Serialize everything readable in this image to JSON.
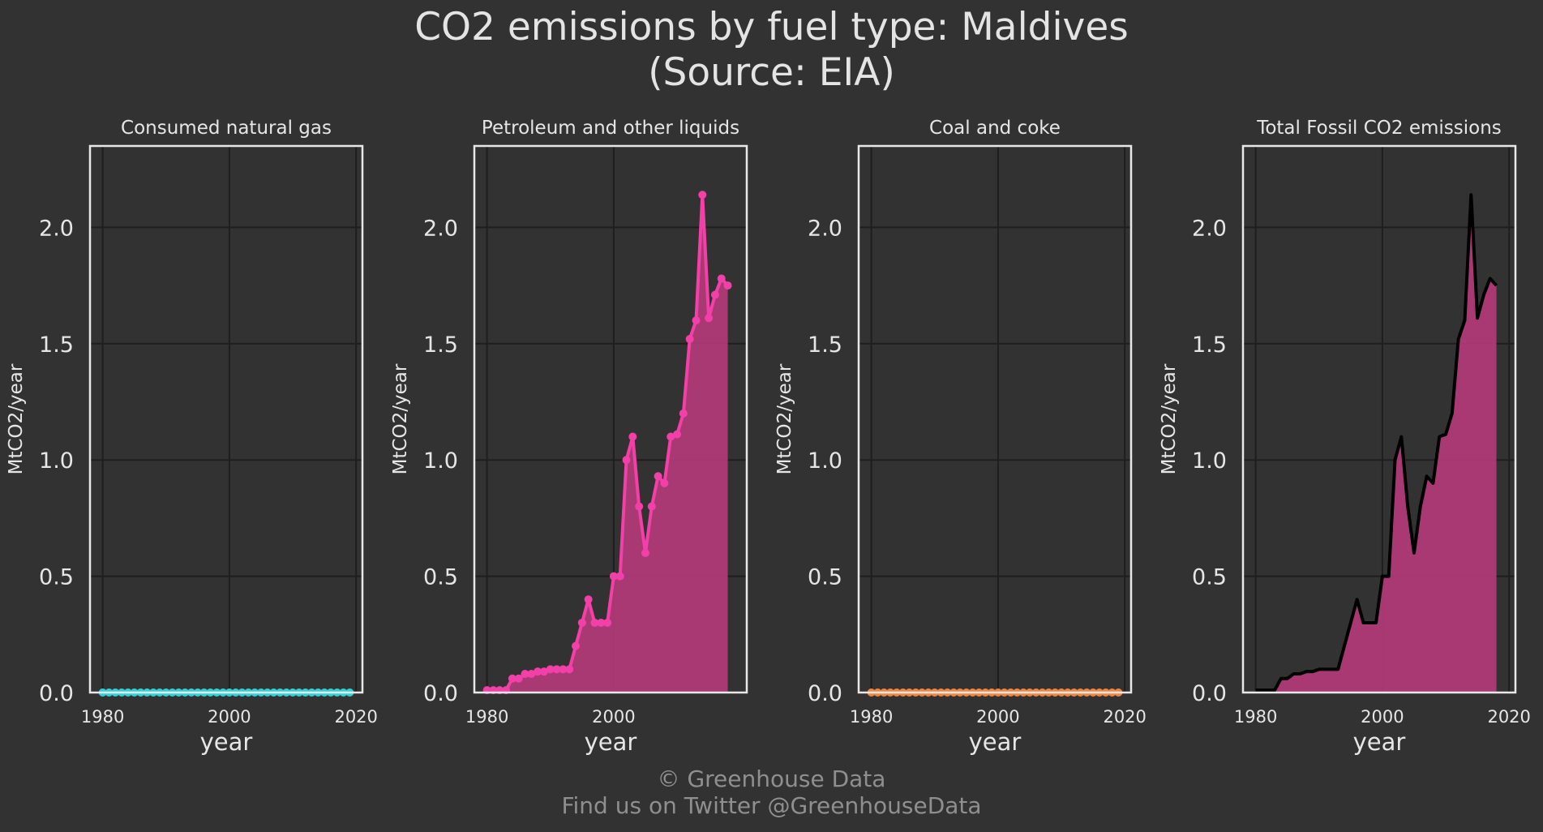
{
  "title_line1": "CO2 emissions by fuel type: Maldives",
  "title_line2": "(Source: EIA)",
  "credit_line1": "© Greenhouse Data",
  "credit_line2": "Find us on Twitter @GreenhouseData",
  "colors": {
    "background": "#323232",
    "grid": "#1e1e1e",
    "frame": "#e8e8e8",
    "text": "#e6e6e6",
    "natural_gas": "#2ed3d8",
    "petroleum": "#f240a8",
    "petroleum_fill": "#b23a78",
    "coal": "#f5853c",
    "total_line": "#000000",
    "total_fill": "#b23a78"
  },
  "chart_data": [
    {
      "type": "line",
      "title": "Consumed natural gas",
      "xlabel": "year",
      "ylabel": "MtCO2/year",
      "xlim": [
        1978,
        2021
      ],
      "ylim": [
        0,
        2.35
      ],
      "xticks": [
        1980,
        2000,
        2020
      ],
      "yticks": [
        0.0,
        0.5,
        1.0,
        1.5,
        2.0
      ],
      "ytick_labels": [
        "0.0",
        "0.5",
        "1.0",
        "1.5",
        "2.0"
      ],
      "grid": true,
      "series": [
        {
          "color": "#2ed3d8",
          "markers": true,
          "fill": false,
          "x": [
            1980,
            1981,
            1982,
            1983,
            1984,
            1985,
            1986,
            1987,
            1988,
            1989,
            1990,
            1991,
            1992,
            1993,
            1994,
            1995,
            1996,
            1997,
            1998,
            1999,
            2000,
            2001,
            2002,
            2003,
            2004,
            2005,
            2006,
            2007,
            2008,
            2009,
            2010,
            2011,
            2012,
            2013,
            2014,
            2015,
            2016,
            2017,
            2018,
            2019
          ],
          "y": [
            0,
            0,
            0,
            0,
            0,
            0,
            0,
            0,
            0,
            0,
            0,
            0,
            0,
            0,
            0,
            0,
            0,
            0,
            0,
            0,
            0,
            0,
            0,
            0,
            0,
            0,
            0,
            0,
            0,
            0,
            0,
            0,
            0,
            0,
            0,
            0,
            0,
            0,
            0,
            0
          ]
        }
      ]
    },
    {
      "type": "area",
      "title": "Petroleum and other liquids",
      "xlabel": "year",
      "ylabel": "MtCO2/year",
      "xlim": [
        1978,
        2021
      ],
      "ylim": [
        0,
        2.35
      ],
      "xticks": [
        1980,
        2000
      ],
      "yticks": [
        0.0,
        0.5,
        1.0,
        1.5,
        2.0
      ],
      "ytick_labels": [
        "0.0",
        "0.5",
        "1.0",
        "1.5",
        "2.0"
      ],
      "grid": true,
      "series": [
        {
          "color": "#f240a8",
          "fill_color": "#b23a78",
          "markers": true,
          "fill": true,
          "x": [
            1980,
            1981,
            1982,
            1983,
            1984,
            1985,
            1986,
            1987,
            1988,
            1989,
            1990,
            1991,
            1992,
            1993,
            1994,
            1995,
            1996,
            1997,
            1998,
            1999,
            2000,
            2001,
            2002,
            2003,
            2004,
            2005,
            2006,
            2007,
            2008,
            2009,
            2010,
            2011,
            2012,
            2013,
            2014,
            2015,
            2016,
            2017,
            2018
          ],
          "y": [
            0.01,
            0.01,
            0.01,
            0.01,
            0.06,
            0.06,
            0.08,
            0.08,
            0.09,
            0.09,
            0.1,
            0.1,
            0.1,
            0.1,
            0.2,
            0.3,
            0.4,
            0.3,
            0.3,
            0.3,
            0.5,
            0.5,
            1.0,
            1.1,
            0.8,
            0.6,
            0.8,
            0.93,
            0.9,
            1.1,
            1.11,
            1.2,
            1.52,
            1.6,
            2.14,
            1.61,
            1.71,
            1.78,
            1.75
          ]
        }
      ]
    },
    {
      "type": "line",
      "title": "Coal and coke",
      "xlabel": "year",
      "ylabel": "MtCO2/year",
      "xlim": [
        1978,
        2021
      ],
      "ylim": [
        0,
        2.35
      ],
      "xticks": [
        1980,
        2000,
        2020
      ],
      "yticks": [
        0.0,
        0.5,
        1.0,
        1.5,
        2.0
      ],
      "ytick_labels": [
        "0.0",
        "0.5",
        "1.0",
        "1.5",
        "2.0"
      ],
      "grid": true,
      "series": [
        {
          "color": "#f5853c",
          "markers": true,
          "fill": false,
          "x": [
            1980,
            1981,
            1982,
            1983,
            1984,
            1985,
            1986,
            1987,
            1988,
            1989,
            1990,
            1991,
            1992,
            1993,
            1994,
            1995,
            1996,
            1997,
            1998,
            1999,
            2000,
            2001,
            2002,
            2003,
            2004,
            2005,
            2006,
            2007,
            2008,
            2009,
            2010,
            2011,
            2012,
            2013,
            2014,
            2015,
            2016,
            2017,
            2018,
            2019
          ],
          "y": [
            0,
            0,
            0,
            0,
            0,
            0,
            0,
            0,
            0,
            0,
            0,
            0,
            0,
            0,
            0,
            0,
            0,
            0,
            0,
            0,
            0,
            0,
            0,
            0,
            0,
            0,
            0,
            0,
            0,
            0,
            0,
            0,
            0,
            0,
            0,
            0,
            0,
            0,
            0,
            0
          ]
        }
      ]
    },
    {
      "type": "area",
      "title": "Total Fossil CO2 emissions",
      "xlabel": "year",
      "ylabel": "MtCO2/year",
      "xlim": [
        1978,
        2021
      ],
      "ylim": [
        0,
        2.35
      ],
      "xticks": [
        1980,
        2000,
        2020
      ],
      "yticks": [
        0.0,
        0.5,
        1.0,
        1.5,
        2.0
      ],
      "ytick_labels": [
        "0.0",
        "0.5",
        "1.0",
        "1.5",
        "2.0"
      ],
      "grid": true,
      "series": [
        {
          "color": "#000000",
          "fill_color": "#b23a78",
          "markers": false,
          "fill": true,
          "x": [
            1980,
            1981,
            1982,
            1983,
            1984,
            1985,
            1986,
            1987,
            1988,
            1989,
            1990,
            1991,
            1992,
            1993,
            1994,
            1995,
            1996,
            1997,
            1998,
            1999,
            2000,
            2001,
            2002,
            2003,
            2004,
            2005,
            2006,
            2007,
            2008,
            2009,
            2010,
            2011,
            2012,
            2013,
            2014,
            2015,
            2016,
            2017,
            2018
          ],
          "y": [
            0.01,
            0.01,
            0.01,
            0.01,
            0.06,
            0.06,
            0.08,
            0.08,
            0.09,
            0.09,
            0.1,
            0.1,
            0.1,
            0.1,
            0.2,
            0.3,
            0.4,
            0.3,
            0.3,
            0.3,
            0.5,
            0.5,
            1.0,
            1.1,
            0.8,
            0.6,
            0.8,
            0.93,
            0.9,
            1.1,
            1.11,
            1.2,
            1.52,
            1.6,
            2.14,
            1.61,
            1.71,
            1.78,
            1.75
          ]
        }
      ]
    }
  ]
}
